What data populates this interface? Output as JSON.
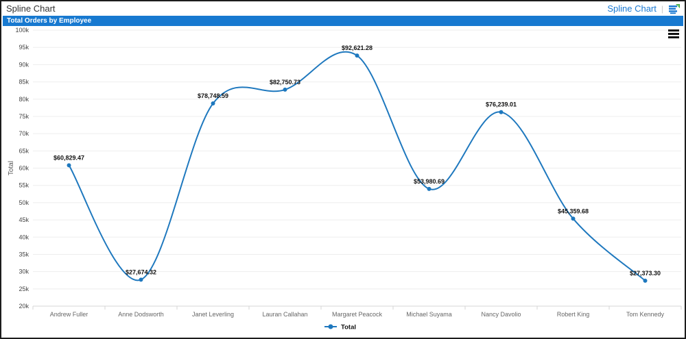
{
  "window": {
    "title": "Spline Chart"
  },
  "toolbar": {
    "link_label": "Spline Chart",
    "divider": "|",
    "source_icon": "list-with-green-arrow-icon"
  },
  "panel": {
    "title": "Total Orders by Employee"
  },
  "colors": {
    "panel_header": "#1779d0",
    "link_blue": "#1878d2",
    "series_blue": "#1e78be",
    "gridline": "#ededed",
    "axis_line": "#d6d6d6",
    "axis_text": "#666666",
    "ytick_text": "#444444",
    "data_label": "#111111"
  },
  "chart_data": {
    "type": "line",
    "subtype": "spline",
    "title": "Total Orders by Employee",
    "categories": [
      "Andrew Fuller",
      "Anne Dodsworth",
      "Janet Leverling",
      "Lauran Callahan",
      "Margaret Peacock",
      "Michael Suyama",
      "Nancy Davolio",
      "Robert King",
      "Tom Kennedy"
    ],
    "series": [
      {
        "name": "Total",
        "color": "#1e78be",
        "values": [
          60829.47,
          27674.32,
          78748.59,
          82750.73,
          92621.28,
          53980.69,
          76239.01,
          45359.68,
          27373.3
        ],
        "point_labels": [
          "$60,829.47",
          "$27,674.32",
          "$78,748.59",
          "$82,750.73",
          "$92,621.28",
          "$53,980.69",
          "$76,239.01",
          "$45,359.68",
          "$27,373.30"
        ]
      }
    ],
    "xlabel": "",
    "ylabel": "Total",
    "ylim": [
      20000,
      100000
    ],
    "ytick_step": 5000,
    "ytick_suffix": "k",
    "grid": true,
    "legend_position": "bottom",
    "legend_label": "Total",
    "menu_icon": "hamburger"
  }
}
